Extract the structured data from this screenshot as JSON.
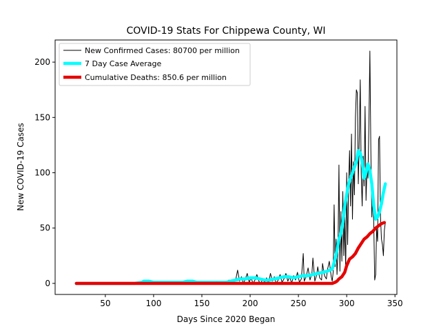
{
  "chart_data": {
    "type": "line",
    "title": "COVID-19 Stats For Chippewa County, WI",
    "xlabel": "Days Since 2020 Began",
    "ylabel": "New COVID-19 Cases",
    "xlim": [
      -2,
      352
    ],
    "ylim": [
      -10,
      220
    ],
    "xticks": [
      50,
      100,
      150,
      200,
      250,
      300,
      350
    ],
    "yticks": [
      0,
      50,
      100,
      150,
      200
    ],
    "grid": false,
    "legend_position": "top-left",
    "series": [
      {
        "name": "New Confirmed Cases: 80700 per million",
        "color": "#000000",
        "style": "thin",
        "x": [
          20,
          40,
          60,
          80,
          88,
          90,
          92,
          95,
          100,
          110,
          120,
          130,
          135,
          138,
          140,
          145,
          150,
          155,
          160,
          165,
          170,
          175,
          178,
          180,
          183,
          185,
          187,
          189,
          191,
          193,
          195,
          197,
          199,
          201,
          203,
          205,
          207,
          209,
          211,
          213,
          215,
          217,
          219,
          221,
          223,
          225,
          227,
          229,
          231,
          233,
          235,
          237,
          239,
          241,
          243,
          245,
          247,
          249,
          251,
          253,
          255,
          256,
          258,
          260,
          262,
          264,
          265,
          267,
          269,
          270,
          272,
          274,
          275,
          277,
          279,
          280,
          282,
          284,
          285,
          286,
          287,
          288,
          289,
          290,
          291,
          292,
          293,
          294,
          295,
          296,
          297,
          298,
          299,
          300,
          301,
          302,
          303,
          304,
          305,
          306,
          307,
          308,
          309,
          310,
          311,
          312,
          313,
          314,
          315,
          316,
          317,
          318,
          319,
          320,
          321,
          322,
          323,
          324,
          325,
          326,
          327,
          328,
          329,
          330,
          331,
          332,
          333,
          334,
          335,
          336,
          337,
          338,
          339,
          340
        ],
        "values": [
          0,
          0,
          0,
          0,
          1,
          3,
          0,
          2,
          0,
          1,
          0,
          0,
          3,
          0,
          2,
          0,
          1,
          0,
          0,
          2,
          0,
          0,
          3,
          0,
          1,
          3,
          12,
          2,
          6,
          0,
          4,
          9,
          1,
          5,
          0,
          3,
          8,
          2,
          0,
          4,
          1,
          5,
          0,
          9,
          2,
          6,
          0,
          3,
          8,
          1,
          4,
          9,
          2,
          6,
          0,
          7,
          3,
          10,
          1,
          4,
          27,
          2,
          6,
          14,
          3,
          9,
          23,
          2,
          8,
          15,
          5,
          3,
          18,
          7,
          4,
          12,
          20,
          6,
          2,
          10,
          71,
          15,
          40,
          8,
          30,
          107,
          11,
          65,
          20,
          83,
          25,
          60,
          12,
          100,
          35,
          87,
          120,
          70,
          135,
          58,
          110,
          80,
          150,
          175,
          172,
          90,
          130,
          184,
          100,
          70,
          115,
          88,
          160,
          75,
          105,
          95,
          145,
          210,
          120,
          60,
          75,
          55,
          3,
          8,
          50,
          38,
          130,
          133,
          60,
          40,
          35,
          25,
          48,
          55
        ]
      },
      {
        "name": "7 Day Case Average",
        "color": "#00ffff",
        "style": "thick",
        "x": [
          20,
          40,
          60,
          80,
          88,
          90,
          92,
          95,
          100,
          110,
          120,
          130,
          135,
          140,
          145,
          150,
          155,
          160,
          165,
          170,
          175,
          180,
          185,
          190,
          195,
          200,
          205,
          210,
          215,
          220,
          225,
          230,
          235,
          240,
          245,
          250,
          255,
          260,
          265,
          270,
          275,
          280,
          285,
          288,
          290,
          292,
          294,
          296,
          298,
          300,
          302,
          304,
          306,
          308,
          310,
          312,
          314,
          316,
          318,
          320,
          322,
          324,
          326,
          328,
          330,
          332,
          334,
          336,
          338,
          340
        ],
        "values": [
          0,
          0,
          0,
          0,
          1,
          2,
          2,
          2,
          1,
          1,
          1,
          1,
          2,
          2,
          1,
          1,
          1,
          1,
          1,
          1,
          1,
          2,
          3,
          4,
          4,
          5,
          5,
          4,
          3,
          3,
          4,
          5,
          6,
          6,
          5,
          6,
          7,
          7,
          8,
          9,
          10,
          11,
          13,
          22,
          30,
          40,
          45,
          55,
          70,
          80,
          90,
          95,
          100,
          105,
          110,
          120,
          118,
          110,
          95,
          100,
          108,
          102,
          90,
          70,
          58,
          60,
          65,
          72,
          82,
          90
        ]
      },
      {
        "name": "Cumulative Deaths: 850.6 per million",
        "color": "#e60000",
        "style": "thick",
        "x": [
          20,
          40,
          60,
          80,
          100,
          120,
          140,
          160,
          180,
          200,
          220,
          240,
          260,
          280,
          285,
          288,
          290,
          292,
          295,
          298,
          300,
          303,
          306,
          309,
          312,
          315,
          318,
          321,
          324,
          327,
          330,
          333,
          336,
          339
        ],
        "values": [
          0,
          0,
          0,
          0,
          0,
          0,
          0,
          0,
          0,
          0,
          0,
          0,
          0,
          0,
          0,
          1,
          2,
          4,
          6,
          10,
          16,
          22,
          24,
          27,
          32,
          36,
          40,
          42,
          45,
          47,
          50,
          52,
          54,
          55
        ]
      }
    ]
  }
}
